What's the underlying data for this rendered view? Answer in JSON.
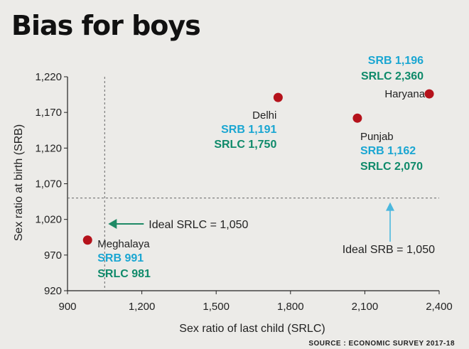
{
  "title": "Bias for boys",
  "colors": {
    "background": "#ecebe8",
    "point": "#b5121b",
    "srb": "#1aa6d2",
    "srlc": "#0f8a6a",
    "ideal_arrow": "#1f8a66",
    "ideal_arrow_up": "#4bb7dd"
  },
  "chart_data": {
    "type": "scatter",
    "title": "Bias for boys",
    "xlabel": "Sex ratio of last child (SRLC)",
    "ylabel": "Sex ratio at birth (SRB)",
    "xlim": [
      900,
      2400
    ],
    "ylim": [
      920,
      1220
    ],
    "x_ticks": [
      900,
      1200,
      1500,
      1800,
      2100,
      2400
    ],
    "x_tick_labels": [
      "900",
      "1,200",
      "1,500",
      "1,800",
      "2,100",
      "2,400"
    ],
    "y_ticks": [
      920,
      970,
      1020,
      1070,
      1120,
      1170,
      1220
    ],
    "y_tick_labels": [
      "920",
      "970",
      "1,020",
      "1,070",
      "1,120",
      "1,170",
      "1,220"
    ],
    "points": [
      {
        "name": "Meghalaya",
        "x": 981,
        "y": 991,
        "srb_label": "SRB 991",
        "srlc_label": "SRLC 981"
      },
      {
        "name": "Delhi",
        "x": 1750,
        "y": 1191,
        "srb_label": "SRB 1,191",
        "srlc_label": "SRLC 1,750"
      },
      {
        "name": "Punjab",
        "x": 2070,
        "y": 1162,
        "srb_label": "SRB 1,162",
        "srlc_label": "SRLC 2,070"
      },
      {
        "name": "Haryana",
        "x": 2360,
        "y": 1196,
        "srb_label": "SRB 1,196",
        "srlc_label": "SRLC 2,360"
      }
    ],
    "reference_lines": {
      "ideal_srlc": {
        "value": 1050,
        "label": "Ideal SRLC = 1,050"
      },
      "ideal_srb": {
        "value": 1050,
        "label": "Ideal SRB = 1,050"
      }
    },
    "source": "SOURCE : ECONOMIC SURVEY 2017-18"
  }
}
